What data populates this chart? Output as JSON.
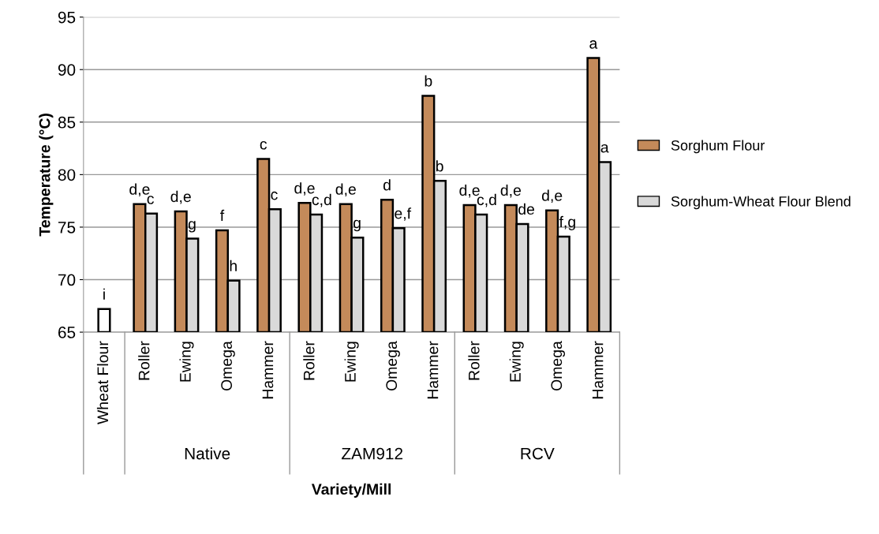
{
  "chart_data": {
    "type": "bar",
    "xlabel": "Variety/Mill",
    "ylabel": "Temperature (°C)",
    "categories": [
      "Wheat Flour",
      "Roller",
      "Ewing",
      "Omega",
      "Hammer",
      "Roller",
      "Ewing",
      "Omega",
      "Hammer",
      "Roller",
      "Ewing",
      "Omega",
      "Hammer"
    ],
    "series": [
      {
        "name": "Sorghum Flour",
        "color": "#c48a5a",
        "colors": [
          "#ffffff",
          "#c48a5a",
          "#c48a5a",
          "#c48a5a",
          "#c48a5a",
          "#c48a5a",
          "#c48a5a",
          "#c48a5a",
          "#c48a5a",
          "#c48a5a",
          "#c48a5a",
          "#c48a5a",
          "#c48a5a"
        ],
        "values": [
          67.2,
          77.2,
          76.5,
          74.7,
          81.5,
          77.3,
          77.2,
          77.6,
          87.5,
          77.1,
          77.1,
          76.6,
          91.1
        ],
        "value_labels": [
          "i",
          "d,e",
          "d,e",
          "f",
          "c",
          "d,e",
          "d,e",
          "d",
          "b",
          "d,e",
          "d,e",
          "d,e",
          "a"
        ]
      },
      {
        "name": "Sorghum-Wheat Flour Blend",
        "color": "#d9d9d9",
        "values": [
          null,
          76.3,
          73.9,
          69.9,
          76.7,
          76.2,
          74.0,
          74.9,
          79.4,
          76.2,
          75.3,
          74.1,
          81.2
        ],
        "value_labels": [
          null,
          "c",
          "g",
          "h",
          "c",
          "c,d",
          "g",
          "e,f",
          "b",
          "c,d",
          "de",
          "f,g",
          "a"
        ]
      }
    ],
    "annotations": [
      "Native",
      "ZAM912",
      "RCV"
    ],
    "ylim": [
      65,
      95
    ],
    "yticks": [
      65,
      70,
      75,
      80,
      85,
      90,
      95
    ],
    "grid": "y",
    "legend": "right"
  }
}
